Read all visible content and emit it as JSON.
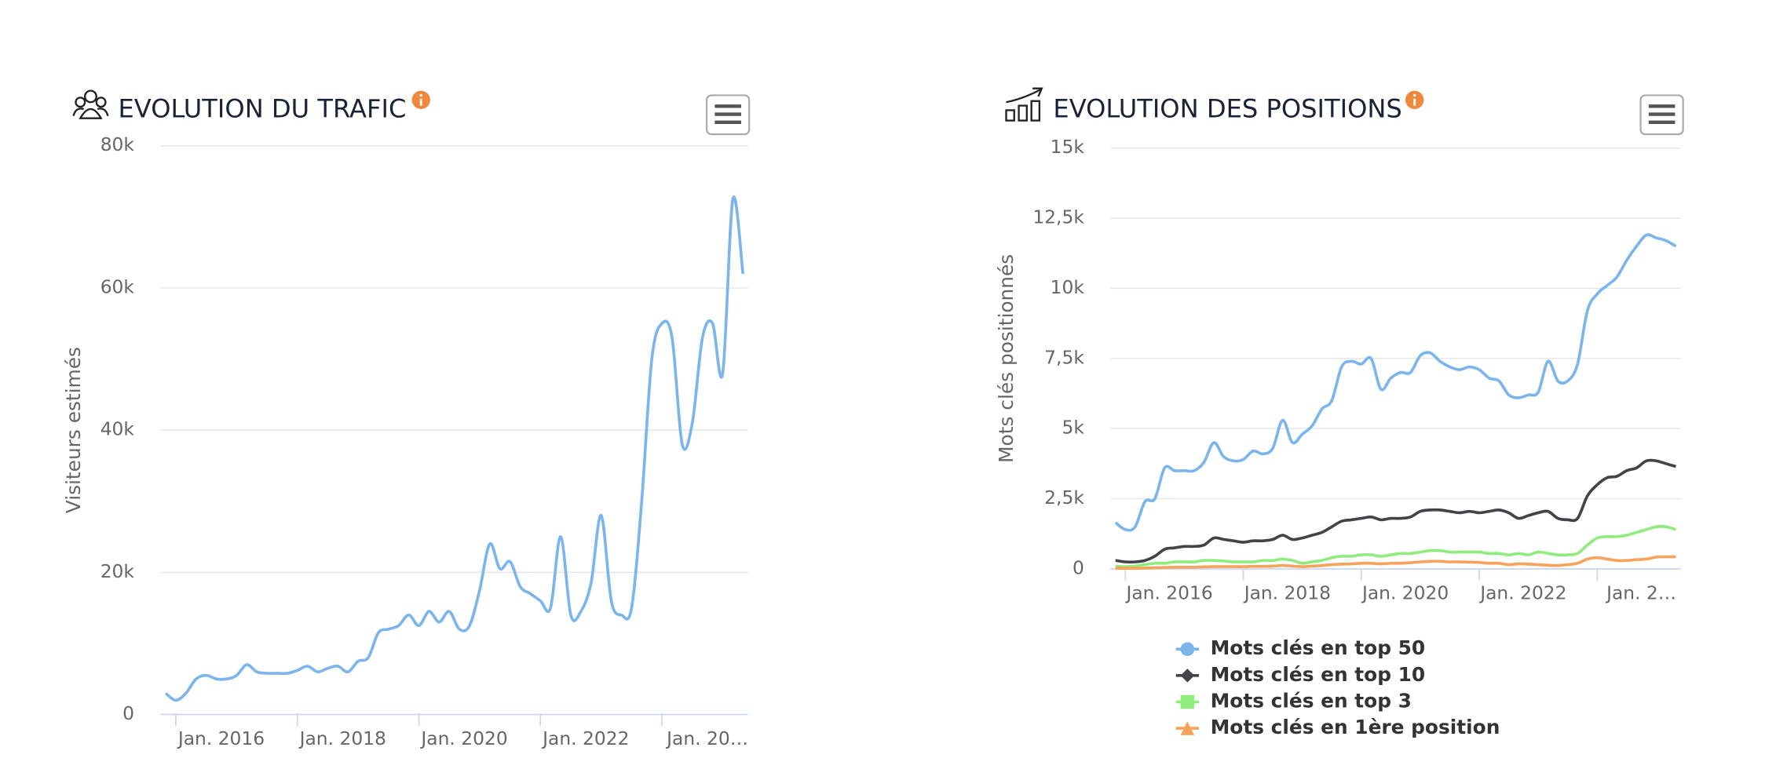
{
  "chart_data": [
    {
      "type": "line",
      "title": "EVOLUTION DU TRAFIC",
      "y_label": "Visiteurs estimés",
      "grid": true,
      "legend": false,
      "x": [
        "2015-11",
        "2016-01",
        "2016-03",
        "2016-05",
        "2016-07",
        "2016-09",
        "2016-11",
        "2017-01",
        "2017-03",
        "2017-05",
        "2017-07",
        "2017-09",
        "2017-11",
        "2018-01",
        "2018-03",
        "2018-05",
        "2018-07",
        "2018-09",
        "2018-11",
        "2019-01",
        "2019-03",
        "2019-05",
        "2019-07",
        "2019-09",
        "2019-11",
        "2020-01",
        "2020-03",
        "2020-05",
        "2020-07",
        "2020-09",
        "2020-11",
        "2021-01",
        "2021-03",
        "2021-05",
        "2021-07",
        "2021-09",
        "2021-11",
        "2022-01",
        "2022-03",
        "2022-05",
        "2022-07",
        "2022-09",
        "2022-11",
        "2023-01",
        "2023-03",
        "2023-05",
        "2023-07",
        "2023-09",
        "2023-11",
        "2024-01",
        "2024-03",
        "2024-05",
        "2024-07",
        "2024-09",
        "2024-11",
        "2025-01",
        "2025-03",
        "2025-05"
      ],
      "xlim": [
        "2015-10",
        "2025-06"
      ],
      "xticks": [
        {
          "value": "2016-01",
          "label": "Jan. 2016"
        },
        {
          "value": "2018-01",
          "label": "Jan. 2018"
        },
        {
          "value": "2020-01",
          "label": "Jan. 2020"
        },
        {
          "value": "2022-01",
          "label": "Jan. 2022"
        },
        {
          "value": "2024-01",
          "label": "Jan. 20…"
        }
      ],
      "ylim": [
        0,
        80000
      ],
      "yticks": [
        0,
        {
          "value": 20000,
          "label": "20k"
        },
        {
          "value": 40000,
          "label": "40k"
        },
        {
          "value": 60000,
          "label": "60k"
        },
        {
          "value": 80000,
          "label": "80k"
        }
      ],
      "series": [
        {
          "color": "#7cb5ec",
          "values": [
            3000,
            2000,
            3000,
            5000,
            5500,
            5000,
            5000,
            5500,
            7000,
            6000,
            5800,
            5800,
            5800,
            6200,
            6800,
            6000,
            6500,
            6800,
            6000,
            7500,
            8000,
            11500,
            12000,
            12500,
            14000,
            12500,
            14500,
            13000,
            14500,
            12000,
            12500,
            17500,
            24000,
            20500,
            21500,
            18000,
            17000,
            16000,
            15000,
            25000,
            14000,
            14500,
            18500,
            28000,
            16000,
            14000,
            15000,
            30000,
            50000,
            55000,
            53000,
            38000,
            41000,
            53000,
            55000,
            48000,
            72500,
            62000
          ]
        }
      ]
    },
    {
      "type": "line",
      "title": "EVOLUTION DES POSITIONS",
      "y_label": "Mots clés positionnés",
      "grid": true,
      "legend": "bottom",
      "x": [
        "2015-11",
        "2016-01",
        "2016-03",
        "2016-05",
        "2016-07",
        "2016-09",
        "2016-11",
        "2017-01",
        "2017-03",
        "2017-05",
        "2017-07",
        "2017-09",
        "2017-11",
        "2018-01",
        "2018-03",
        "2018-05",
        "2018-07",
        "2018-09",
        "2018-11",
        "2019-01",
        "2019-03",
        "2019-05",
        "2019-07",
        "2019-09",
        "2019-11",
        "2020-01",
        "2020-03",
        "2020-05",
        "2020-07",
        "2020-09",
        "2020-11",
        "2021-01",
        "2021-03",
        "2021-05",
        "2021-07",
        "2021-09",
        "2021-11",
        "2022-01",
        "2022-03",
        "2022-05",
        "2022-07",
        "2022-09",
        "2022-11",
        "2023-01",
        "2023-03",
        "2023-05",
        "2023-07",
        "2023-09",
        "2023-11",
        "2024-01",
        "2024-03",
        "2024-05",
        "2024-07",
        "2024-09",
        "2024-11",
        "2025-01",
        "2025-03",
        "2025-05"
      ],
      "xlim": [
        "2015-10",
        "2025-06"
      ],
      "xticks": [
        {
          "value": "2016-01",
          "label": "Jan. 2016"
        },
        {
          "value": "2018-01",
          "label": "Jan. 2018"
        },
        {
          "value": "2020-01",
          "label": "Jan. 2020"
        },
        {
          "value": "2022-01",
          "label": "Jan. 2022"
        },
        {
          "value": "2024-01",
          "label": "Jan. 2…"
        }
      ],
      "ylim": [
        0,
        15000
      ],
      "yticks": [
        0,
        {
          "value": 2500,
          "label": "2,5k"
        },
        {
          "value": 5000,
          "label": "5k"
        },
        {
          "value": 7500,
          "label": "7,5k"
        },
        {
          "value": 10000,
          "label": "10k"
        },
        {
          "value": 12500,
          "label": "12,5k"
        },
        {
          "value": 15000,
          "label": "15k"
        }
      ],
      "series": [
        {
          "name": "Mots clés en top 50",
          "color": "#7cb5ec",
          "marker": "circle",
          "values": [
            1650,
            1400,
            1500,
            2400,
            2500,
            3600,
            3500,
            3500,
            3500,
            3800,
            4500,
            4000,
            3850,
            3900,
            4200,
            4100,
            4300,
            5300,
            4500,
            4800,
            5100,
            5700,
            6000,
            7200,
            7400,
            7300,
            7500,
            6400,
            6800,
            7000,
            7000,
            7600,
            7700,
            7400,
            7200,
            7100,
            7200,
            7100,
            6800,
            6700,
            6200,
            6100,
            6200,
            6300,
            7400,
            6700,
            6700,
            7300,
            9200,
            9800,
            10100,
            10400,
            11000,
            11500,
            11900,
            11800,
            11700,
            11500
          ]
        },
        {
          "name": "Mots clés en top 10",
          "color": "#434348",
          "marker": "diamond",
          "values": [
            300,
            250,
            250,
            300,
            450,
            700,
            750,
            800,
            800,
            850,
            1100,
            1050,
            1000,
            950,
            1000,
            1000,
            1050,
            1200,
            1050,
            1100,
            1200,
            1300,
            1500,
            1700,
            1750,
            1800,
            1850,
            1750,
            1800,
            1800,
            1850,
            2050,
            2100,
            2100,
            2050,
            2000,
            2050,
            2000,
            2050,
            2100,
            2000,
            1800,
            1900,
            2000,
            2050,
            1800,
            1750,
            1800,
            2600,
            3000,
            3250,
            3300,
            3500,
            3600,
            3850,
            3850,
            3750,
            3650
          ]
        },
        {
          "name": "Mots clés en top 3",
          "color": "#90ed7d",
          "marker": "square",
          "values": [
            100,
            80,
            100,
            150,
            200,
            200,
            250,
            250,
            250,
            300,
            300,
            280,
            250,
            250,
            250,
            300,
            300,
            350,
            300,
            200,
            250,
            300,
            400,
            450,
            450,
            500,
            500,
            450,
            500,
            550,
            550,
            600,
            650,
            650,
            600,
            600,
            600,
            600,
            550,
            550,
            500,
            550,
            500,
            600,
            550,
            500,
            500,
            550,
            850,
            1100,
            1150,
            1150,
            1200,
            1300,
            1400,
            1500,
            1500,
            1400
          ]
        },
        {
          "name": "Mots clés en 1ère position",
          "color": "#f7a35c",
          "marker": "triangle",
          "values": [
            20,
            20,
            20,
            30,
            40,
            50,
            60,
            60,
            60,
            70,
            80,
            80,
            80,
            80,
            90,
            90,
            100,
            120,
            100,
            80,
            100,
            120,
            150,
            170,
            180,
            200,
            200,
            180,
            200,
            200,
            220,
            250,
            270,
            270,
            250,
            250,
            240,
            230,
            200,
            200,
            150,
            180,
            170,
            150,
            130,
            120,
            150,
            200,
            350,
            400,
            350,
            300,
            300,
            330,
            350,
            420,
            430,
            430
          ]
        }
      ]
    }
  ]
}
